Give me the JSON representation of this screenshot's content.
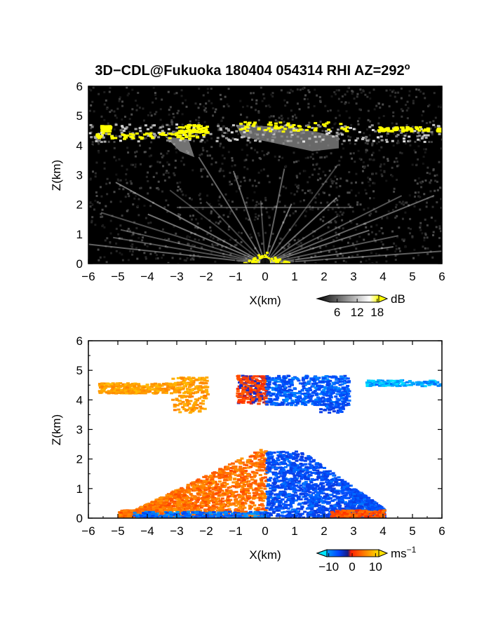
{
  "title": "3D−CDL@Fukuoka 180404 054314 RHI AZ=292",
  "title_degree": "o",
  "chart_data": [
    {
      "type": "heatmap",
      "name": "reflectivity",
      "xlabel": "X(km)",
      "ylabel": "Z(km)",
      "xlim": [
        -6,
        6
      ],
      "ylim": [
        0,
        6
      ],
      "xticks": [
        "−6",
        "−5",
        "−4",
        "−3",
        "−2",
        "−1",
        "0",
        "1",
        "2",
        "3",
        "4",
        "5",
        "6"
      ],
      "yticks": [
        "0",
        "1",
        "2",
        "3",
        "4",
        "5",
        "6"
      ],
      "colorbar": {
        "unit": "dB",
        "ticks": [
          "6",
          "12",
          "18"
        ],
        "range": [
          0,
          21
        ],
        "colors": [
          "#000000",
          "#ffffff",
          "#ffff00"
        ]
      },
      "background": "#000000",
      "features": [
        {
          "kind": "cloud_layer",
          "x": [
            -6.0,
            6.0
          ],
          "z": [
            4.1,
            4.8
          ],
          "value_db": 18
        },
        {
          "kind": "near_field_fan",
          "x": [
            -6.0,
            6.0
          ],
          "z": [
            0.0,
            2.5
          ],
          "value_db": 12
        }
      ]
    },
    {
      "type": "heatmap",
      "name": "doppler_velocity",
      "xlabel": "X(km)",
      "ylabel": "Z(km)",
      "xlim": [
        -6,
        6
      ],
      "ylim": [
        0,
        6
      ],
      "xticks": [
        "−6",
        "−5",
        "−4",
        "−3",
        "−2",
        "−1",
        "0",
        "1",
        "2",
        "3",
        "4",
        "5",
        "6"
      ],
      "yticks": [
        "0",
        "1",
        "2",
        "3",
        "4",
        "5",
        "6"
      ],
      "colorbar": {
        "unit": "ms",
        "unit_exp": "−1",
        "ticks": [
          "−10",
          "0",
          "10"
        ],
        "range": [
          -15,
          15
        ],
        "colors": [
          "#00e5ff",
          "#0044ff",
          "#1020a0",
          "#ff2000",
          "#ff8c00",
          "#ffe000"
        ]
      },
      "background": "#ffffff",
      "features": [
        {
          "kind": "cloud_left",
          "x": [
            -5.7,
            -2.0
          ],
          "z": [
            3.6,
            4.8
          ],
          "velocity": 8
        },
        {
          "kind": "cloud_center_pos",
          "x": [
            -1.0,
            0.0
          ],
          "z": [
            3.9,
            4.9
          ],
          "velocity": 2
        },
        {
          "kind": "cloud_center_neg",
          "x": [
            0.0,
            2.8
          ],
          "z": [
            3.8,
            4.9
          ],
          "velocity": -8
        },
        {
          "kind": "cloud_right",
          "x": [
            3.4,
            6.0
          ],
          "z": [
            4.5,
            4.7
          ],
          "velocity": -12
        },
        {
          "kind": "low_positive",
          "x": [
            -5.0,
            0.0
          ],
          "z": [
            0.0,
            2.5
          ],
          "velocity": 5
        },
        {
          "kind": "low_negative",
          "x": [
            0.0,
            4.0
          ],
          "z": [
            0.0,
            2.9
          ],
          "velocity": -7
        }
      ]
    }
  ]
}
